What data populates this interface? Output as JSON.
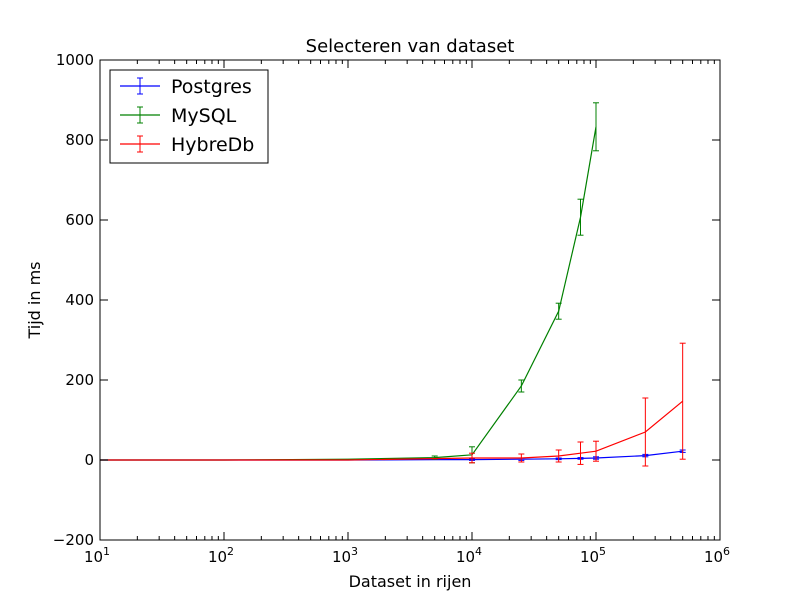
{
  "chart_data": {
    "type": "line",
    "title": "Selecteren van dataset",
    "xlabel": "Dataset in rijen",
    "ylabel": "Tijd in ms",
    "xscale": "log",
    "xlim": [
      10,
      1000000
    ],
    "ylim": [
      -200,
      1000
    ],
    "x_ticks": [
      {
        "value": 10,
        "base": "10",
        "exp": "1"
      },
      {
        "value": 100,
        "base": "10",
        "exp": "2"
      },
      {
        "value": 1000,
        "base": "10",
        "exp": "3"
      },
      {
        "value": 10000,
        "base": "10",
        "exp": "4"
      },
      {
        "value": 100000,
        "base": "10",
        "exp": "5"
      },
      {
        "value": 1000000,
        "base": "10",
        "exp": "6"
      }
    ],
    "y_ticks": [
      -200,
      0,
      200,
      400,
      600,
      800,
      1000
    ],
    "y_tick_labels": [
      "−200",
      "0",
      "200",
      "400",
      "600",
      "800",
      "1000"
    ],
    "grid": false,
    "legend_position": "top-left",
    "error_bars": true,
    "series": [
      {
        "name": "Postgres",
        "color": "#0000ff",
        "points": [
          {
            "x": 10,
            "y": 0
          },
          {
            "x": 100,
            "y": 0
          },
          {
            "x": 1000,
            "y": 0
          },
          {
            "x": 5000,
            "y": 1
          },
          {
            "x": 10000,
            "y": 1,
            "err": 2
          },
          {
            "x": 25000,
            "y": 2,
            "err": 3
          },
          {
            "x": 50000,
            "y": 3,
            "err": 2
          },
          {
            "x": 75000,
            "y": 4,
            "err": 2
          },
          {
            "x": 100000,
            "y": 5,
            "err": 3
          },
          {
            "x": 250000,
            "y": 11,
            "err": 3
          },
          {
            "x": 500000,
            "y": 22,
            "err": 3
          }
        ]
      },
      {
        "name": "MySQL",
        "color": "#008000",
        "points": [
          {
            "x": 10,
            "y": 0
          },
          {
            "x": 100,
            "y": 0
          },
          {
            "x": 1000,
            "y": 2
          },
          {
            "x": 5000,
            "y": 6,
            "err": 4
          },
          {
            "x": 10000,
            "y": 13,
            "err": 20
          },
          {
            "x": 25000,
            "y": 185,
            "err": 15
          },
          {
            "x": 50000,
            "y": 372,
            "err": 20
          },
          {
            "x": 75000,
            "y": 607,
            "err": 45
          },
          {
            "x": 100000,
            "y": 833,
            "err": 60
          }
        ]
      },
      {
        "name": "HybreDb",
        "color": "#ff0000",
        "points": [
          {
            "x": 10,
            "y": 0
          },
          {
            "x": 100,
            "y": 0
          },
          {
            "x": 1000,
            "y": 0
          },
          {
            "x": 10000,
            "y": 5,
            "err": 12
          },
          {
            "x": 25000,
            "y": 5,
            "err": 10
          },
          {
            "x": 50000,
            "y": 10,
            "err": 15
          },
          {
            "x": 75000,
            "y": 17,
            "err": 28
          },
          {
            "x": 100000,
            "y": 22,
            "err": 25
          },
          {
            "x": 250000,
            "y": 70,
            "err": 85
          },
          {
            "x": 500000,
            "y": 147,
            "err": 145
          }
        ]
      }
    ]
  }
}
